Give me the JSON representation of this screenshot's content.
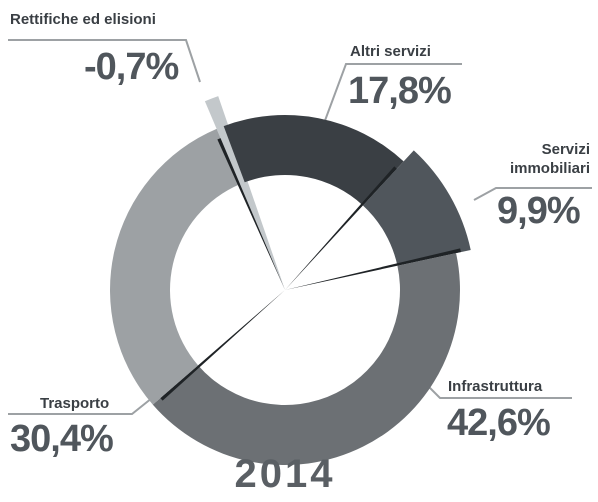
{
  "chart_data": {
    "type": "donut",
    "title": "2014",
    "categories": [
      "Rettifiche ed elisioni",
      "Altri servizi",
      "Servizi immobiliari",
      "Infrastruttura",
      "Trasporto"
    ],
    "values": [
      -0.7,
      17.8,
      9.9,
      42.6,
      30.4
    ],
    "value_labels": [
      "-0,7%",
      "17,8%",
      "9,9%",
      "42,6%",
      "30,4%"
    ],
    "colors": [
      "#c3c8cb",
      "#3a3f44",
      "#50565c",
      "#6c7074",
      "#9da1a4"
    ]
  }
}
